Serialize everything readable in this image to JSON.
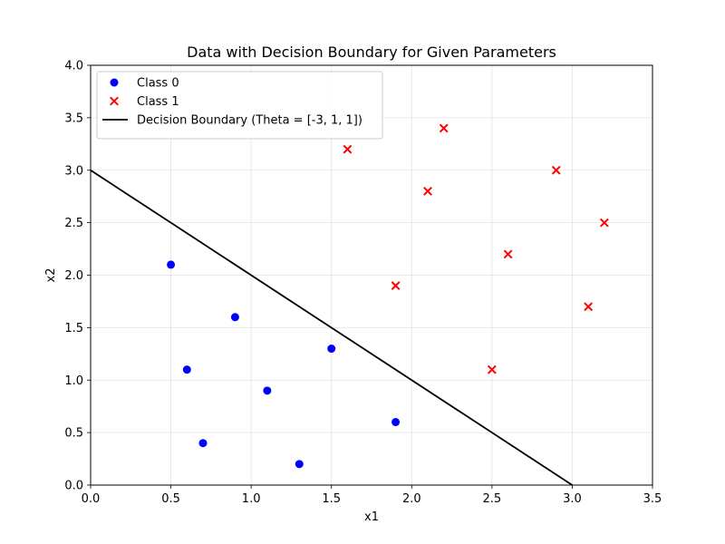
{
  "chart_data": {
    "type": "scatter",
    "title": "Data with Decision Boundary for Given Parameters",
    "xlabel": "x1",
    "ylabel": "x2",
    "xlim": [
      0,
      3.5
    ],
    "ylim": [
      0,
      4.0
    ],
    "xticks": [
      "0.0",
      "0.5",
      "1.0",
      "1.5",
      "2.0",
      "2.5",
      "3.0",
      "3.5"
    ],
    "yticks": [
      "0.0",
      "0.5",
      "1.0",
      "1.5",
      "2.0",
      "2.5",
      "3.0",
      "3.5",
      "4.0"
    ],
    "grid": true,
    "legend_position": "top-left",
    "series": [
      {
        "name": "Class 0",
        "marker": "circle",
        "color": "#0000ff",
        "points": [
          {
            "x": 0.5,
            "y": 2.1
          },
          {
            "x": 0.6,
            "y": 1.1
          },
          {
            "x": 0.7,
            "y": 0.4
          },
          {
            "x": 0.9,
            "y": 1.6
          },
          {
            "x": 1.1,
            "y": 0.9
          },
          {
            "x": 1.3,
            "y": 0.2
          },
          {
            "x": 1.5,
            "y": 1.3
          },
          {
            "x": 1.9,
            "y": 0.6
          }
        ]
      },
      {
        "name": "Class 1",
        "marker": "x",
        "color": "#ff0000",
        "points": [
          {
            "x": 1.6,
            "y": 3.2
          },
          {
            "x": 1.9,
            "y": 1.9
          },
          {
            "x": 2.1,
            "y": 2.8
          },
          {
            "x": 2.2,
            "y": 3.4
          },
          {
            "x": 2.5,
            "y": 1.1
          },
          {
            "x": 2.6,
            "y": 2.2
          },
          {
            "x": 2.9,
            "y": 3.0
          },
          {
            "x": 3.1,
            "y": 1.7
          },
          {
            "x": 3.2,
            "y": 2.5
          }
        ]
      },
      {
        "name": "Decision Boundary (Theta = [-3, 1, 1])",
        "type": "line",
        "color": "#000000",
        "points": [
          {
            "x": 0.0,
            "y": 3.0
          },
          {
            "x": 3.0,
            "y": 0.0
          }
        ]
      }
    ]
  }
}
